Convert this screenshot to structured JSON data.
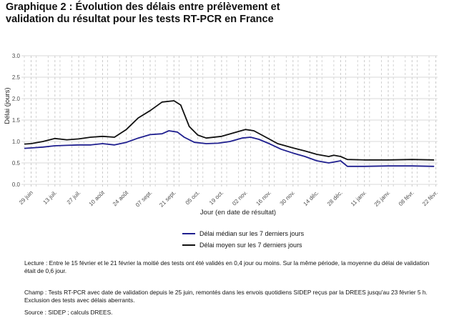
{
  "title_line1": "Graphique 2 : Évolution des délais entre prélèvement et",
  "title_line2": "validation du résultat pour les tests RT-PCR en France",
  "notes": {
    "lecture": "Lecture : Entre le 15 février et le 21 février la moitié des tests ont été validés en 0,4 jour ou moins. Sur la même période, la moyenne du délai de validation était de 0,6 jour.",
    "champ": "Champ : Tests RT-PCR avec date de validation depuis le 25 juin, remontés dans les envois quotidiens SIDEP reçus par la DREES jusqu'au 23 février 5 h. Exclusion des tests avec délais aberrants.",
    "source": "Source : SIDEP ; calculs DREES."
  },
  "colors": {
    "median": "#1f1f8f",
    "mean": "#111111",
    "grid_major": "#d9d9d9",
    "grid_minor": "#c8c8c8",
    "axis_text": "#4d4d4d"
  },
  "chart_data": {
    "type": "line",
    "xlabel": "Jour (en date de résultat)",
    "ylabel": "Délai (jours)",
    "ylim": [
      0,
      3
    ],
    "yticks": [
      "0.0",
      "0.5",
      "1.0",
      "1.5",
      "2.0",
      "2.5",
      "3.0"
    ],
    "xlim": [
      "2020-06-25",
      "2021-02-23"
    ],
    "xticks": [
      {
        "date": "2020-06-29",
        "label": "29 juin"
      },
      {
        "date": "2020-07-13",
        "label": "13 juil."
      },
      {
        "date": "2020-07-27",
        "label": "27 juil."
      },
      {
        "date": "2020-08-10",
        "label": "10 août"
      },
      {
        "date": "2020-08-24",
        "label": "24 août"
      },
      {
        "date": "2020-09-07",
        "label": "07 sept."
      },
      {
        "date": "2020-09-21",
        "label": "21 sept."
      },
      {
        "date": "2020-10-05",
        "label": "05 oct."
      },
      {
        "date": "2020-10-19",
        "label": "19 oct."
      },
      {
        "date": "2020-11-02",
        "label": "02 nov."
      },
      {
        "date": "2020-11-16",
        "label": "16 nov."
      },
      {
        "date": "2020-11-30",
        "label": "30 nov."
      },
      {
        "date": "2020-12-14",
        "label": "14 déc."
      },
      {
        "date": "2020-12-28",
        "label": "28 déc."
      },
      {
        "date": "2021-01-11",
        "label": "11 janv."
      },
      {
        "date": "2021-01-25",
        "label": "25 janv."
      },
      {
        "date": "2021-02-08",
        "label": "08 févr."
      },
      {
        "date": "2021-02-22",
        "label": "22 févr."
      }
    ],
    "grid": true,
    "legend_position": "bottom",
    "series": [
      {
        "name": "Délai médian sur les 7 derniers jours",
        "color": "#1f1f8f",
        "points": [
          [
            "2020-06-25",
            0.84
          ],
          [
            "2020-06-29",
            0.85
          ],
          [
            "2020-07-06",
            0.87
          ],
          [
            "2020-07-13",
            0.9
          ],
          [
            "2020-07-20",
            0.91
          ],
          [
            "2020-07-27",
            0.92
          ],
          [
            "2020-08-03",
            0.92
          ],
          [
            "2020-08-10",
            0.95
          ],
          [
            "2020-08-17",
            0.92
          ],
          [
            "2020-08-24",
            0.98
          ],
          [
            "2020-08-31",
            1.08
          ],
          [
            "2020-09-07",
            1.16
          ],
          [
            "2020-09-14",
            1.18
          ],
          [
            "2020-09-18",
            1.25
          ],
          [
            "2020-09-23",
            1.22
          ],
          [
            "2020-09-27",
            1.1
          ],
          [
            "2020-10-03",
            0.98
          ],
          [
            "2020-10-10",
            0.95
          ],
          [
            "2020-10-17",
            0.96
          ],
          [
            "2020-10-24",
            1.0
          ],
          [
            "2020-10-31",
            1.08
          ],
          [
            "2020-11-05",
            1.1
          ],
          [
            "2020-11-10",
            1.05
          ],
          [
            "2020-11-16",
            0.95
          ],
          [
            "2020-11-23",
            0.82
          ],
          [
            "2020-11-30",
            0.73
          ],
          [
            "2020-12-07",
            0.65
          ],
          [
            "2020-12-14",
            0.55
          ],
          [
            "2020-12-21",
            0.5
          ],
          [
            "2020-12-24",
            0.52
          ],
          [
            "2020-12-28",
            0.55
          ],
          [
            "2021-01-01",
            0.42
          ],
          [
            "2021-01-11",
            0.42
          ],
          [
            "2021-01-25",
            0.43
          ],
          [
            "2021-02-08",
            0.43
          ],
          [
            "2021-02-21",
            0.42
          ]
        ]
      },
      {
        "name": "Délai moyen sur les 7 derniers jours",
        "color": "#111111",
        "points": [
          [
            "2020-06-25",
            0.94
          ],
          [
            "2020-06-29",
            0.95
          ],
          [
            "2020-07-06",
            1.0
          ],
          [
            "2020-07-13",
            1.07
          ],
          [
            "2020-07-20",
            1.04
          ],
          [
            "2020-07-27",
            1.06
          ],
          [
            "2020-08-03",
            1.1
          ],
          [
            "2020-08-10",
            1.12
          ],
          [
            "2020-08-17",
            1.1
          ],
          [
            "2020-08-24",
            1.28
          ],
          [
            "2020-08-31",
            1.55
          ],
          [
            "2020-09-07",
            1.72
          ],
          [
            "2020-09-14",
            1.92
          ],
          [
            "2020-09-21",
            1.95
          ],
          [
            "2020-09-25",
            1.85
          ],
          [
            "2020-09-30",
            1.35
          ],
          [
            "2020-10-05",
            1.15
          ],
          [
            "2020-10-10",
            1.08
          ],
          [
            "2020-10-19",
            1.12
          ],
          [
            "2020-10-26",
            1.2
          ],
          [
            "2020-11-02",
            1.28
          ],
          [
            "2020-11-07",
            1.25
          ],
          [
            "2020-11-14",
            1.1
          ],
          [
            "2020-11-21",
            0.95
          ],
          [
            "2020-11-30",
            0.85
          ],
          [
            "2020-12-07",
            0.78
          ],
          [
            "2020-12-14",
            0.7
          ],
          [
            "2020-12-21",
            0.65
          ],
          [
            "2020-12-24",
            0.68
          ],
          [
            "2020-12-28",
            0.65
          ],
          [
            "2021-01-01",
            0.58
          ],
          [
            "2021-01-11",
            0.57
          ],
          [
            "2021-01-25",
            0.57
          ],
          [
            "2021-02-08",
            0.58
          ],
          [
            "2021-02-21",
            0.57
          ]
        ]
      }
    ]
  }
}
